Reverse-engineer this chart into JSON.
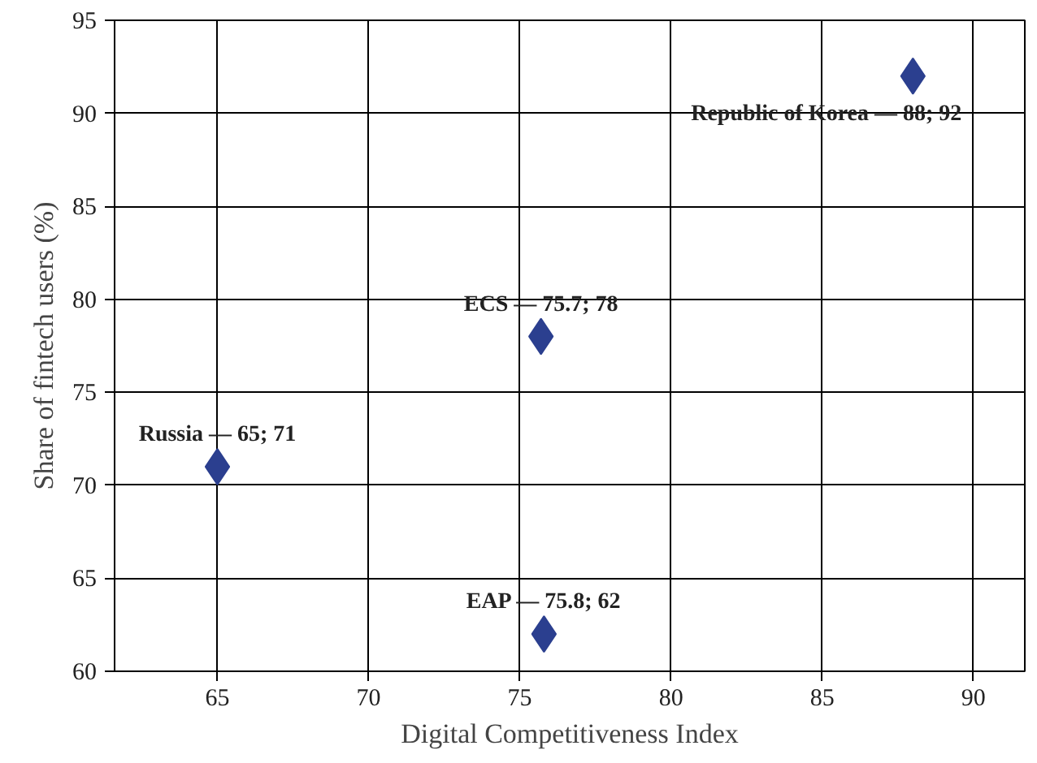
{
  "chart_data": {
    "type": "scatter",
    "xlabel": "Digital Competitiveness Index",
    "ylabel": "Share of fintech users (%)",
    "x": [
      65,
      75.7,
      75.8,
      88
    ],
    "values": [
      71,
      78,
      62,
      92
    ],
    "color": "#2b3f8f",
    "marker": "diamond",
    "grid": true,
    "xlim": [
      61.6,
      91.7
    ],
    "xticks": [
      65,
      70,
      75,
      80,
      85,
      90
    ],
    "ylim": [
      60,
      95
    ],
    "yticks": [
      60,
      65,
      70,
      75,
      80,
      85,
      90,
      95
    ],
    "annotations": [
      {
        "text": "Russia — 65; 71",
        "x": 65,
        "y": 71
      },
      {
        "text": "ECS — 75.7; 78",
        "x": 75.7,
        "y": 78
      },
      {
        "text": "EAP — 75.8; 62",
        "x": 75.8,
        "y": 62
      },
      {
        "text": "Republic of Korea — 88; 92",
        "x": 88,
        "y": 92
      }
    ]
  }
}
